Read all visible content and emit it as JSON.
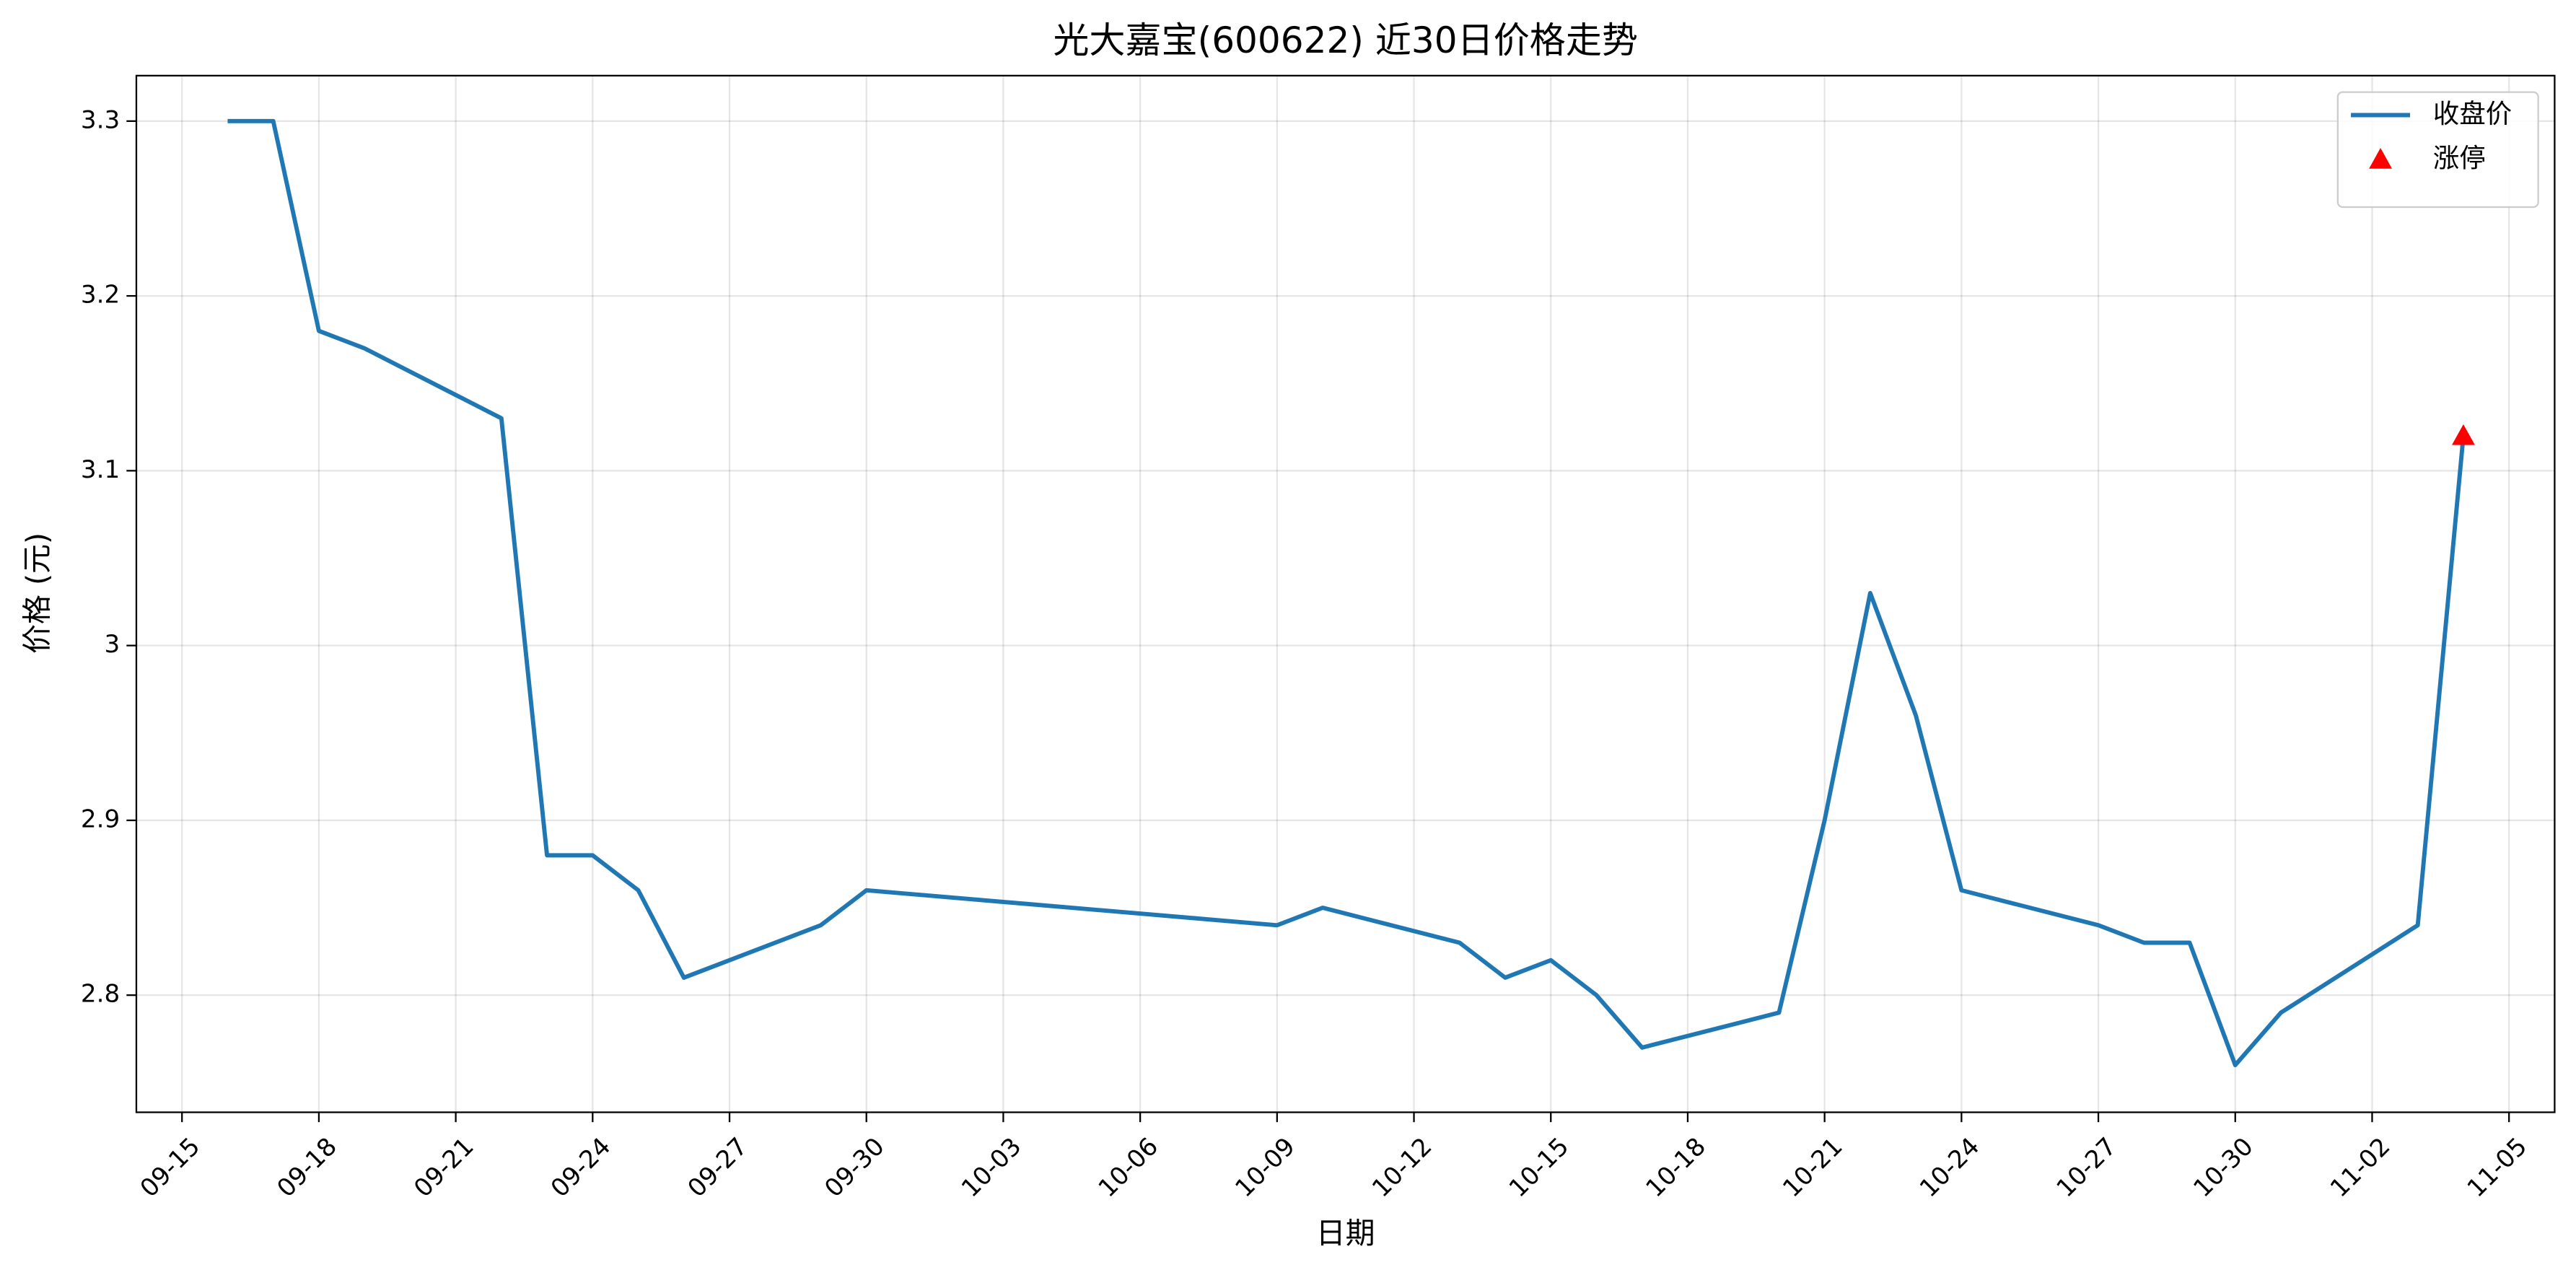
{
  "chart_data": {
    "type": "line",
    "title": "光大嘉宝(600622) 近30日价格走势",
    "xlabel": "日期",
    "ylabel": "价格 (元)",
    "x": [
      "09-16",
      "09-17",
      "09-18",
      "09-19",
      "09-22",
      "09-23",
      "09-24",
      "09-25",
      "09-26",
      "09-29",
      "09-30",
      "10-09",
      "10-10",
      "10-13",
      "10-14",
      "10-15",
      "10-16",
      "10-17",
      "10-20",
      "10-21",
      "10-22",
      "10-23",
      "10-24",
      "10-27",
      "10-28",
      "10-29",
      "10-30",
      "10-31",
      "11-03",
      "11-04"
    ],
    "series": [
      {
        "name": "收盘价",
        "color": "#1f77b4",
        "values": [
          3.3,
          3.3,
          3.18,
          3.17,
          3.13,
          2.88,
          2.88,
          2.86,
          2.81,
          2.84,
          2.86,
          2.84,
          2.85,
          2.83,
          2.81,
          2.82,
          2.8,
          2.77,
          2.79,
          2.9,
          3.03,
          2.96,
          2.86,
          2.84,
          2.83,
          2.83,
          2.76,
          2.79,
          2.84,
          3.12
        ]
      },
      {
        "name": "涨停",
        "color": "#ff0000",
        "marker": "triangle",
        "x": [
          "11-04"
        ],
        "values": [
          3.12
        ]
      }
    ],
    "xlim": [
      "09-14",
      "11-06"
    ],
    "xticks": [
      "09-15",
      "09-18",
      "09-21",
      "09-24",
      "09-27",
      "09-30",
      "10-03",
      "10-06",
      "10-09",
      "10-12",
      "10-15",
      "10-18",
      "10-21",
      "10-24",
      "10-27",
      "10-30",
      "11-02",
      "11-05"
    ],
    "ylim": [
      2.733,
      3.326
    ],
    "yticks": [
      2.8,
      2.9,
      3.0,
      3.1,
      3.2,
      3.3
    ],
    "grid": true,
    "legend": "upper right"
  }
}
